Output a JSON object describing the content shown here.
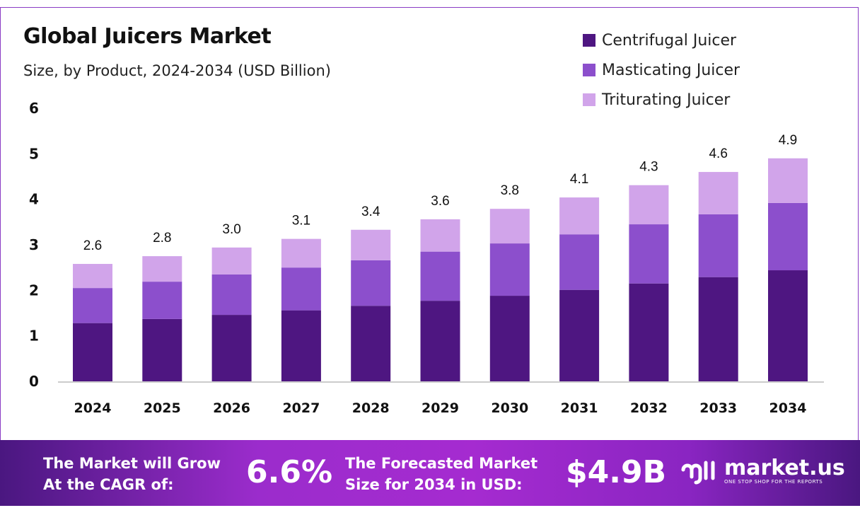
{
  "chart_data": {
    "type": "bar",
    "stacked": true,
    "title": "Global Juicers Market",
    "subtitle": "Size, by Product, 2024-2034 (USD Billion)",
    "categories": [
      "2024",
      "2025",
      "2026",
      "2027",
      "2028",
      "2029",
      "2030",
      "2031",
      "2032",
      "2033",
      "2034"
    ],
    "series": [
      {
        "name": "Centrifugal Juicer",
        "color": "#4e1681",
        "values": [
          1.28,
          1.37,
          1.46,
          1.56,
          1.66,
          1.77,
          1.88,
          2.01,
          2.15,
          2.29,
          2.44
        ]
      },
      {
        "name": "Masticating Juicer",
        "color": "#8c4fcc",
        "values": [
          0.77,
          0.82,
          0.89,
          0.94,
          1.0,
          1.08,
          1.15,
          1.22,
          1.3,
          1.38,
          1.48
        ]
      },
      {
        "name": "Triturating Juicer",
        "color": "#d1a4ea",
        "values": [
          0.53,
          0.56,
          0.59,
          0.63,
          0.67,
          0.71,
          0.76,
          0.81,
          0.86,
          0.93,
          0.98
        ]
      }
    ],
    "totals_labels": [
      "2.6",
      "2.8",
      "3.0",
      "3.1",
      "3.4",
      "3.6",
      "3.8",
      "4.1",
      "4.3",
      "4.6",
      "4.9"
    ],
    "ylim": [
      0,
      6
    ],
    "yticks": [
      "0",
      "1",
      "2",
      "3",
      "4",
      "5",
      "6"
    ],
    "grid": false,
    "legend": "top-right"
  },
  "footer": {
    "cagr_text_1": "The Market will Grow",
    "cagr_text_2": "At the CAGR of:",
    "cagr_value": "6.6%",
    "forecast_text_1": "The Forecasted Market",
    "forecast_text_2": "Size for 2034 in USD:",
    "forecast_value": "$4.9B",
    "logo_name": "market.us",
    "logo_tagline": "ONE STOP SHOP FOR THE REPORTS"
  }
}
